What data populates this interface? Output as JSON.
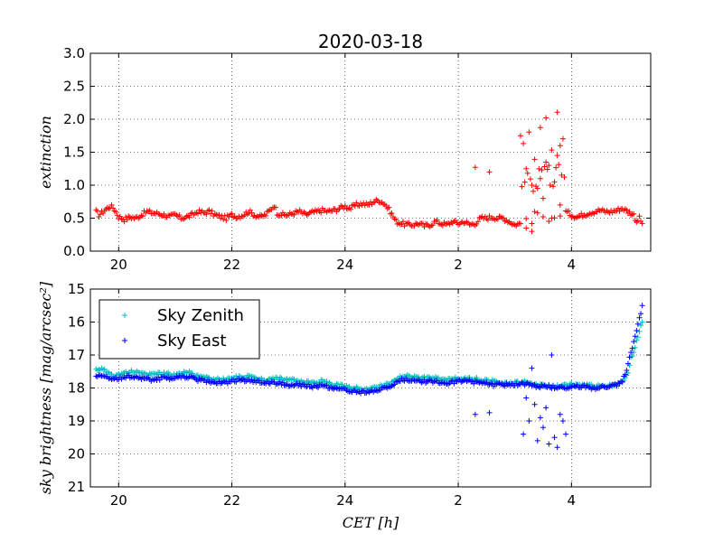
{
  "chart_data": {
    "title": "2020-03-18",
    "x_ticks": [
      "20",
      "22",
      "24",
      "2",
      "4"
    ],
    "x_tick_values": [
      20,
      22,
      24,
      26,
      28
    ],
    "xlim": [
      19.5,
      29.4
    ],
    "xlabel": "CET [h]",
    "grid": true,
    "subplots": [
      {
        "type": "scatter",
        "ylabel": "extinction",
        "ylim": [
          0.0,
          3.0
        ],
        "y_ticks": [
          "0.0",
          "0.5",
          "1.0",
          "1.5",
          "2.0",
          "2.5",
          "3.0"
        ],
        "y_tick_values": [
          0.0,
          0.5,
          1.0,
          1.5,
          2.0,
          2.5,
          3.0
        ],
        "y_inverted": false,
        "series": [
          {
            "color": "#ff0000",
            "marker": "+",
            "x": [
              19.6,
              19.65,
              19.7,
              19.75,
              19.8,
              19.85,
              19.9,
              19.95,
              20.0,
              20.05,
              20.1,
              20.15,
              20.2,
              20.3,
              20.4,
              20.5,
              20.6,
              20.7,
              20.8,
              20.9,
              21.0,
              21.1,
              21.2,
              21.3,
              21.4,
              21.5,
              21.6,
              21.7,
              21.8,
              21.9,
              22.0,
              22.1,
              22.2,
              22.3,
              22.4,
              22.5,
              22.6,
              22.7,
              22.75,
              22.8,
              22.9,
              23.0,
              23.1,
              23.2,
              23.3,
              23.4,
              23.5,
              23.6,
              23.7,
              23.8,
              23.9,
              24.0,
              24.1,
              24.2,
              24.3,
              24.4,
              24.5,
              24.6,
              24.7,
              24.8,
              24.9,
              25.0,
              25.1,
              25.2,
              25.3,
              25.4,
              25.5,
              25.6,
              25.7,
              25.8,
              25.9,
              26.0,
              26.1,
              26.2,
              26.3,
              26.4,
              26.5,
              26.6,
              26.7,
              26.8,
              26.9,
              27.0,
              27.1,
              27.15,
              27.2,
              27.25,
              27.3,
              27.35,
              27.4,
              27.45,
              27.5,
              27.55,
              27.6,
              27.65,
              27.7,
              27.75,
              27.8,
              27.85,
              27.9,
              28.0,
              28.1,
              28.2,
              28.3,
              28.4,
              28.5,
              28.6,
              28.7,
              28.8,
              28.9,
              29.0,
              29.1,
              29.15,
              29.2,
              29.25
            ],
            "y": [
              0.6,
              0.55,
              0.58,
              0.62,
              0.65,
              0.68,
              0.66,
              0.6,
              0.52,
              0.5,
              0.48,
              0.5,
              0.52,
              0.5,
              0.55,
              0.6,
              0.58,
              0.57,
              0.55,
              0.52,
              0.55,
              0.5,
              0.52,
              0.55,
              0.6,
              0.58,
              0.6,
              0.55,
              0.52,
              0.5,
              0.55,
              0.52,
              0.55,
              0.6,
              0.55,
              0.52,
              0.55,
              0.65,
              0.7,
              0.58,
              0.55,
              0.55,
              0.58,
              0.6,
              0.55,
              0.58,
              0.6,
              0.62,
              0.6,
              0.62,
              0.65,
              0.68,
              0.65,
              0.7,
              0.72,
              0.7,
              0.75,
              0.77,
              0.72,
              0.6,
              0.45,
              0.42,
              0.4,
              0.4,
              0.42,
              0.38,
              0.4,
              0.45,
              0.42,
              0.4,
              0.45,
              0.42,
              0.45,
              0.4,
              0.42,
              0.5,
              0.5,
              0.52,
              0.5,
              0.5,
              0.45,
              0.4,
              0.42,
              1.6,
              0.5,
              1.8,
              0.45,
              1.4,
              0.55,
              1.9,
              0.5,
              2.0,
              0.45,
              1.5,
              0.5,
              2.1,
              0.55,
              1.7,
              0.6,
              0.55,
              0.52,
              0.55,
              0.58,
              0.6,
              0.62,
              0.6,
              0.6,
              0.62,
              0.65,
              0.6,
              0.55,
              0.45,
              0.5,
              0.42
            ],
            "extra_x": [
              26.3,
              26.55,
              27.1,
              27.2,
              27.3,
              27.35,
              27.45,
              27.5,
              27.6,
              27.7,
              27.75,
              27.8,
              27.2,
              27.3,
              27.4,
              27.55,
              27.65,
              27.8
            ],
            "extra_y": [
              1.27,
              1.2,
              1.75,
              1.25,
              1.0,
              0.6,
              1.1,
              0.8,
              1.3,
              1.05,
              1.45,
              1.6,
              0.35,
              0.3,
              0.95,
              1.35,
              0.5,
              0.7
            ]
          }
        ]
      },
      {
        "type": "scatter",
        "ylabel": "sky brightness [mag/arcsec²]",
        "ylim": [
          15,
          21
        ],
        "y_ticks": [
          "15",
          "16",
          "17",
          "18",
          "19",
          "20",
          "21"
        ],
        "y_tick_values": [
          15,
          16,
          17,
          18,
          19,
          20,
          21
        ],
        "y_inverted": true,
        "legend_position": "top-left",
        "series": [
          {
            "name": "Sky Zenith",
            "color": "#00bfbf",
            "marker": "+",
            "x": [
              19.6,
              19.7,
              19.8,
              19.9,
              20.0,
              20.2,
              20.4,
              20.6,
              20.8,
              21.0,
              21.2,
              21.4,
              21.6,
              21.8,
              22.0,
              22.2,
              22.4,
              22.6,
              22.8,
              23.0,
              23.2,
              23.4,
              23.6,
              23.8,
              24.0,
              24.2,
              24.4,
              24.6,
              24.8,
              25.0,
              25.2,
              25.4,
              25.6,
              25.8,
              26.0,
              26.2,
              26.4,
              26.6,
              26.8,
              27.0,
              27.2,
              27.4,
              27.6,
              27.8,
              28.0,
              28.2,
              28.4,
              28.6,
              28.8,
              28.9,
              29.0,
              29.05,
              29.1,
              29.15,
              29.2,
              29.25
            ],
            "y": [
              17.45,
              17.4,
              17.55,
              17.65,
              17.6,
              17.5,
              17.55,
              17.6,
              17.55,
              17.6,
              17.5,
              17.65,
              17.7,
              17.75,
              17.7,
              17.65,
              17.7,
              17.75,
              17.7,
              17.75,
              17.8,
              17.85,
              17.8,
              17.9,
              17.95,
              18.0,
              18.05,
              17.95,
              17.85,
              17.65,
              17.65,
              17.7,
              17.7,
              17.75,
              17.7,
              17.7,
              17.75,
              17.8,
              17.85,
              17.85,
              17.8,
              17.9,
              17.95,
              17.95,
              17.9,
              17.9,
              17.95,
              17.95,
              17.9,
              17.8,
              17.5,
              17.1,
              16.9,
              16.6,
              16.3,
              16.0
            ]
          },
          {
            "name": "Sky East",
            "color": "#0000ff",
            "marker": "+",
            "x": [
              19.6,
              19.7,
              19.8,
              19.9,
              20.0,
              20.2,
              20.4,
              20.6,
              20.8,
              21.0,
              21.2,
              21.4,
              21.6,
              21.8,
              22.0,
              22.2,
              22.4,
              22.6,
              22.8,
              23.0,
              23.2,
              23.4,
              23.6,
              23.8,
              24.0,
              24.2,
              24.4,
              24.6,
              24.8,
              25.0,
              25.2,
              25.4,
              25.6,
              25.8,
              26.0,
              26.2,
              26.4,
              26.6,
              26.8,
              27.0,
              27.2,
              27.4,
              27.6,
              27.8,
              28.0,
              28.2,
              28.4,
              28.6,
              28.8,
              28.9,
              29.0,
              29.05,
              29.1,
              29.15,
              29.2,
              29.25
            ],
            "y": [
              17.65,
              17.6,
              17.7,
              17.75,
              17.7,
              17.65,
              17.7,
              17.75,
              17.7,
              17.7,
              17.65,
              17.75,
              17.8,
              17.85,
              17.8,
              17.75,
              17.8,
              17.85,
              17.85,
              17.9,
              17.9,
              17.95,
              17.95,
              18.0,
              18.05,
              18.1,
              18.15,
              18.05,
              17.95,
              17.75,
              17.75,
              17.8,
              17.8,
              17.85,
              17.8,
              17.8,
              17.85,
              17.9,
              17.9,
              17.9,
              17.85,
              17.95,
              17.95,
              18.0,
              17.95,
              17.95,
              18.0,
              17.95,
              17.9,
              17.8,
              17.3,
              16.9,
              16.6,
              16.3,
              15.9,
              15.5
            ],
            "extra_x": [
              26.3,
              26.55,
              27.15,
              27.2,
              27.25,
              27.3,
              27.35,
              27.4,
              27.45,
              27.5,
              27.55,
              27.6,
              27.65,
              27.7,
              27.75,
              27.8,
              27.85,
              27.9
            ],
            "extra_y": [
              18.8,
              18.75,
              19.4,
              18.3,
              19.0,
              17.4,
              18.5,
              19.6,
              18.9,
              19.2,
              18.6,
              19.7,
              17.0,
              19.5,
              19.8,
              18.8,
              19.0,
              19.4
            ]
          }
        ]
      }
    ]
  }
}
